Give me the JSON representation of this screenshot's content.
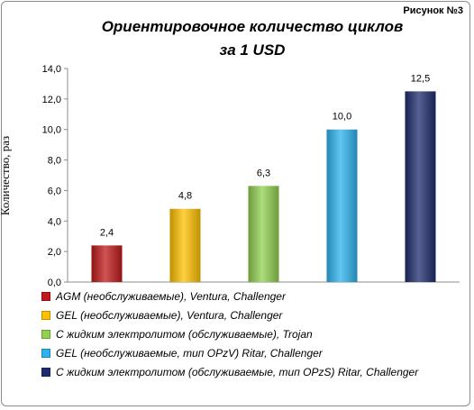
{
  "figure_label": "Рисунок №3",
  "chart_data": {
    "type": "bar",
    "title": "Ориентировочное количество циклов за 1 USD",
    "title_lines": [
      "Ориентировочное  количество циклов",
      "за 1 USD"
    ],
    "xlabel": "",
    "ylabel": "Количество, раз",
    "ylim": [
      0,
      14
    ],
    "yticks": [
      "0,0",
      "2,0",
      "4,0",
      "6,0",
      "8,0",
      "10,0",
      "12,0",
      "14,0"
    ],
    "grid": false,
    "legend_position": "bottom",
    "categories": [
      "AGM (необслуживаемые), Ventura, Challenger",
      "GEL (необслуживаемые), Ventura, Challenger",
      "С жидким электролитом (обслуживаемые), Trojan",
      "GEL (необслуживаемые, тип OPzV) Ritar, Challenger",
      "С жидким электролитом (обслуживаемые, тип OPzS) Ritar, Challenger"
    ],
    "values": [
      2.4,
      4.8,
      6.3,
      10.0,
      12.5
    ],
    "value_labels": [
      "2,4",
      "4,8",
      "6,3",
      "10,0",
      "12,5"
    ],
    "colors": [
      "#c0191b",
      "#ffc000",
      "#92d050",
      "#2db3ef",
      "#1f2d6e"
    ]
  }
}
